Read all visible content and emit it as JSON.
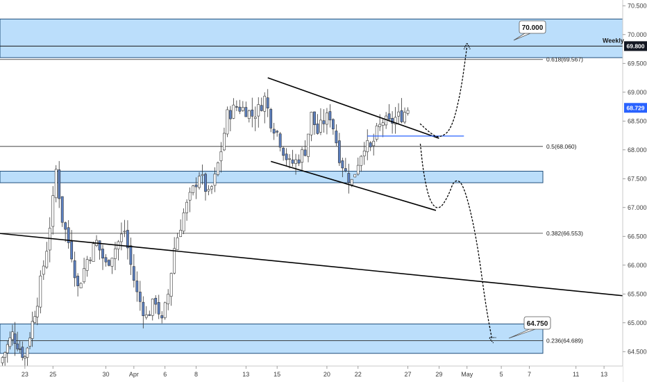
{
  "chart_data": {
    "type": "candlestick",
    "y_axis": {
      "ylim": [
        64.25,
        70.6
      ],
      "ticks": [
        "70.500",
        "70.000",
        "69.500",
        "69.000",
        "68.500",
        "68.000",
        "67.500",
        "67.000",
        "66.500",
        "66.000",
        "65.500",
        "65.000",
        "64.500"
      ],
      "tick_values": [
        70.5,
        70.0,
        69.5,
        69.0,
        68.5,
        68.0,
        67.5,
        67.0,
        66.5,
        66.0,
        65.5,
        65.0,
        64.5
      ]
    },
    "x_axis": {
      "ticks": [
        {
          "label": "23",
          "pos": 0.04
        },
        {
          "label": "25",
          "pos": 0.085
        },
        {
          "label": "30",
          "pos": 0.17
        },
        {
          "label": "Apr",
          "pos": 0.215
        },
        {
          "label": "6",
          "pos": 0.265
        },
        {
          "label": "8",
          "pos": 0.315
        },
        {
          "label": "13",
          "pos": 0.395
        },
        {
          "label": "15",
          "pos": 0.445
        },
        {
          "label": "20",
          "pos": 0.525
        },
        {
          "label": "22",
          "pos": 0.575
        },
        {
          "label": "27",
          "pos": 0.655
        },
        {
          "label": "29",
          "pos": 0.705
        },
        {
          "label": "May",
          "pos": 0.75
        },
        {
          "label": "5",
          "pos": 0.805
        },
        {
          "label": "7",
          "pos": 0.85
        },
        {
          "label": "11",
          "pos": 0.925
        },
        {
          "label": "13",
          "pos": 0.97
        }
      ]
    },
    "price_path": [
      [
        0.0,
        64.3
      ],
      [
        0.02,
        64.8
      ],
      [
        0.04,
        64.4
      ],
      [
        0.06,
        65.4
      ],
      [
        0.075,
        66.3
      ],
      [
        0.085,
        67.1
      ],
      [
        0.09,
        67.65
      ],
      [
        0.1,
        66.8
      ],
      [
        0.115,
        66.2
      ],
      [
        0.125,
        65.6
      ],
      [
        0.14,
        66.1
      ],
      [
        0.155,
        66.4
      ],
      [
        0.17,
        66.0
      ],
      [
        0.185,
        66.3
      ],
      [
        0.2,
        66.6
      ],
      [
        0.21,
        66.0
      ],
      [
        0.22,
        65.5
      ],
      [
        0.235,
        65.1
      ],
      [
        0.25,
        65.4
      ],
      [
        0.26,
        65.0
      ],
      [
        0.27,
        65.5
      ],
      [
        0.28,
        66.3
      ],
      [
        0.295,
        66.9
      ],
      [
        0.31,
        67.3
      ],
      [
        0.32,
        67.6
      ],
      [
        0.335,
        67.2
      ],
      [
        0.345,
        67.5
      ],
      [
        0.355,
        68.0
      ],
      [
        0.365,
        68.6
      ],
      [
        0.38,
        68.75
      ],
      [
        0.395,
        68.7
      ],
      [
        0.405,
        68.6
      ],
      [
        0.415,
        68.7
      ],
      [
        0.425,
        68.9
      ],
      [
        0.435,
        68.5
      ],
      [
        0.445,
        68.3
      ],
      [
        0.455,
        68.0
      ],
      [
        0.465,
        67.75
      ],
      [
        0.475,
        67.8
      ],
      [
        0.49,
        68.0
      ],
      [
        0.5,
        68.6
      ],
      [
        0.51,
        68.3
      ],
      [
        0.52,
        68.5
      ],
      [
        0.53,
        68.6
      ],
      [
        0.535,
        68.4
      ],
      [
        0.545,
        67.9
      ],
      [
        0.555,
        67.6
      ],
      [
        0.565,
        67.45
      ],
      [
        0.575,
        67.8
      ],
      [
        0.585,
        68.1
      ],
      [
        0.595,
        68.0
      ],
      [
        0.605,
        68.3
      ],
      [
        0.615,
        68.5
      ],
      [
        0.625,
        68.45
      ],
      [
        0.635,
        68.55
      ],
      [
        0.645,
        68.6
      ],
      [
        0.655,
        68.72
      ]
    ],
    "levels": [
      {
        "label": "0.618(69.567)",
        "value": 69.567
      },
      {
        "label": "0.5(68.060)",
        "value": 68.06
      },
      {
        "label": "0.382(66.553)",
        "value": 66.553
      },
      {
        "label": "0.236(64.689)",
        "value": 64.689
      }
    ],
    "zones": [
      {
        "name": "weekly",
        "y1": 70.27,
        "y2": 69.6
      },
      {
        "name": "support",
        "y1": 67.63,
        "y2": 67.43
      },
      {
        "name": "lower",
        "y1": 64.98,
        "y2": 64.47
      }
    ],
    "weekly_line": 69.8,
    "trendlines": [
      {
        "x1": 0.43,
        "y1": 69.25,
        "x2": 0.705,
        "y2": 68.2
      },
      {
        "x1": 0.435,
        "y1": 67.8,
        "x2": 0.7,
        "y2": 66.95
      },
      {
        "x1": 0.0,
        "y1": 66.55,
        "x2": 1.0,
        "y2": 65.47
      }
    ],
    "blue_hline": {
      "x1": 0.59,
      "x2": 0.745,
      "y": 68.24
    },
    "projections": [
      [
        [
          0.675,
          68.45
        ],
        [
          0.69,
          68.3
        ],
        [
          0.705,
          68.2
        ],
        [
          0.725,
          68.35
        ],
        [
          0.74,
          69.0
        ],
        [
          0.75,
          69.8
        ]
      ],
      [
        [
          0.675,
          68.1
        ],
        [
          0.68,
          67.6
        ],
        [
          0.69,
          67.1
        ],
        [
          0.705,
          66.95
        ],
        [
          0.72,
          67.2
        ],
        [
          0.73,
          67.5
        ],
        [
          0.745,
          67.4
        ],
        [
          0.765,
          66.5
        ],
        [
          0.78,
          65.3
        ],
        [
          0.79,
          64.72
        ]
      ]
    ],
    "callouts": [
      {
        "label": "70.000",
        "value": 70.0
      },
      {
        "label": "64.750",
        "value": 64.75
      }
    ]
  },
  "axis": {
    "weekly_label": "Weekly",
    "current_price_badge": "69.800",
    "last_price_badge": "68.729"
  },
  "colors": {
    "zone_fill": "#bbdefb",
    "zone_border": "#1f4d7a",
    "candle_body": "#5b7fbf",
    "candle_outline": "#333333",
    "price_badge_dark": "#131722",
    "price_badge_blue": "#2962ff",
    "blue_line": "#2962ff"
  }
}
